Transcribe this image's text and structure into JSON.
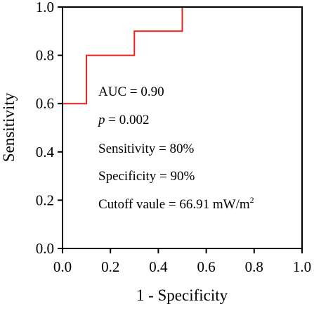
{
  "chart_data": {
    "type": "line",
    "xlabel": "1 - Specificity",
    "ylabel": "Sensitivity",
    "xlim": [
      0.0,
      1.0
    ],
    "ylim": [
      0.0,
      1.0
    ],
    "xticks": [
      "0.0",
      "0.2",
      "0.4",
      "0.6",
      "0.8",
      "1.0"
    ],
    "yticks": [
      "0.0",
      "0.2",
      "0.4",
      "0.6",
      "0.8",
      "1.0"
    ],
    "grid": false,
    "series": [
      {
        "color": "#e8211f",
        "step": true,
        "x": [
          0.0,
          0.1,
          0.1,
          0.3,
          0.3,
          0.5,
          0.5
        ],
        "y": [
          0.6,
          0.6,
          0.8,
          0.8,
          0.9,
          0.9,
          1.0
        ]
      }
    ],
    "annotations": {
      "auc": "AUC = 0.90",
      "p_symbol": "p",
      "p_value": " = 0.002",
      "sensitivity": "Sensitivity = 80%",
      "specificity": "Specificity = 90%",
      "cutoff": "Cutoff vaule = 66.91 mW/m",
      "cutoff_superscript": "2"
    }
  }
}
